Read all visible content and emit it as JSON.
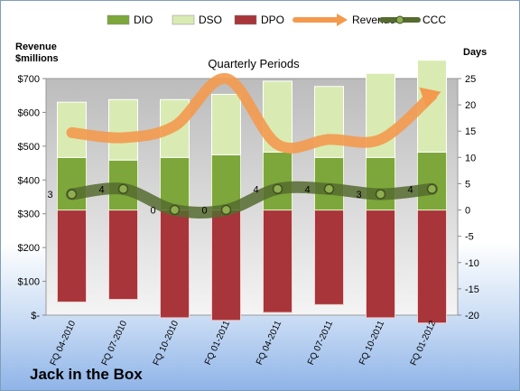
{
  "footer_title": "Jack in the Box",
  "chart_data": {
    "type": "bar",
    "title": "Quarterly Periods",
    "ylabel_left": "Revenue $millions",
    "ylabel_right": "Days",
    "categories": [
      "FQ 04-2010",
      "FQ 07-2010",
      "FQ 10-2010",
      "FQ 01-2011",
      "FQ 04-2011",
      "FQ 07-2011",
      "FQ 10-2011",
      "FQ 01-2012"
    ],
    "ylim_left": [
      0,
      700
    ],
    "ylim_right": [
      -20,
      25
    ],
    "yticks_left": [
      "$-",
      "$100",
      "$200",
      "$300",
      "$400",
      "$500",
      "$600",
      "$700"
    ],
    "yticks_right": [
      "-20",
      "-15",
      "-10",
      "-5",
      "0",
      "5",
      "10",
      "15",
      "20",
      "25"
    ],
    "stacked_series": [
      {
        "name": "DPO",
        "color": "#a8353a",
        "values": [
          -17.5,
          -17,
          -20.5,
          -21,
          -19.5,
          -18,
          -20.5,
          -21.5
        ]
      },
      {
        "name": "DIO",
        "color": "#7da73a",
        "values": [
          10,
          9.5,
          10,
          10.5,
          11,
          10,
          10,
          11
        ]
      },
      {
        "name": "DSO",
        "color": "#d9ebb2",
        "values": [
          10.5,
          11.5,
          11,
          11.5,
          13.5,
          13.5,
          16,
          17.5
        ]
      }
    ],
    "line_series": [
      {
        "name": "Revenue",
        "axis": "left",
        "color": "#f39a4e",
        "values": [
          540,
          525,
          560,
          700,
          505,
          520,
          520,
          650
        ]
      },
      {
        "name": "CCC",
        "axis": "right",
        "color": "#556b2f",
        "values": [
          3,
          4,
          0,
          0,
          4,
          4,
          3,
          4
        ],
        "labels": [
          "3",
          "4",
          "0",
          "0",
          "4",
          "4",
          "3",
          "4"
        ]
      }
    ],
    "legend": [
      "DIO",
      "DSO",
      "DPO",
      "Revenue",
      "CCC"
    ],
    "legend_position": "top",
    "grid": false
  }
}
